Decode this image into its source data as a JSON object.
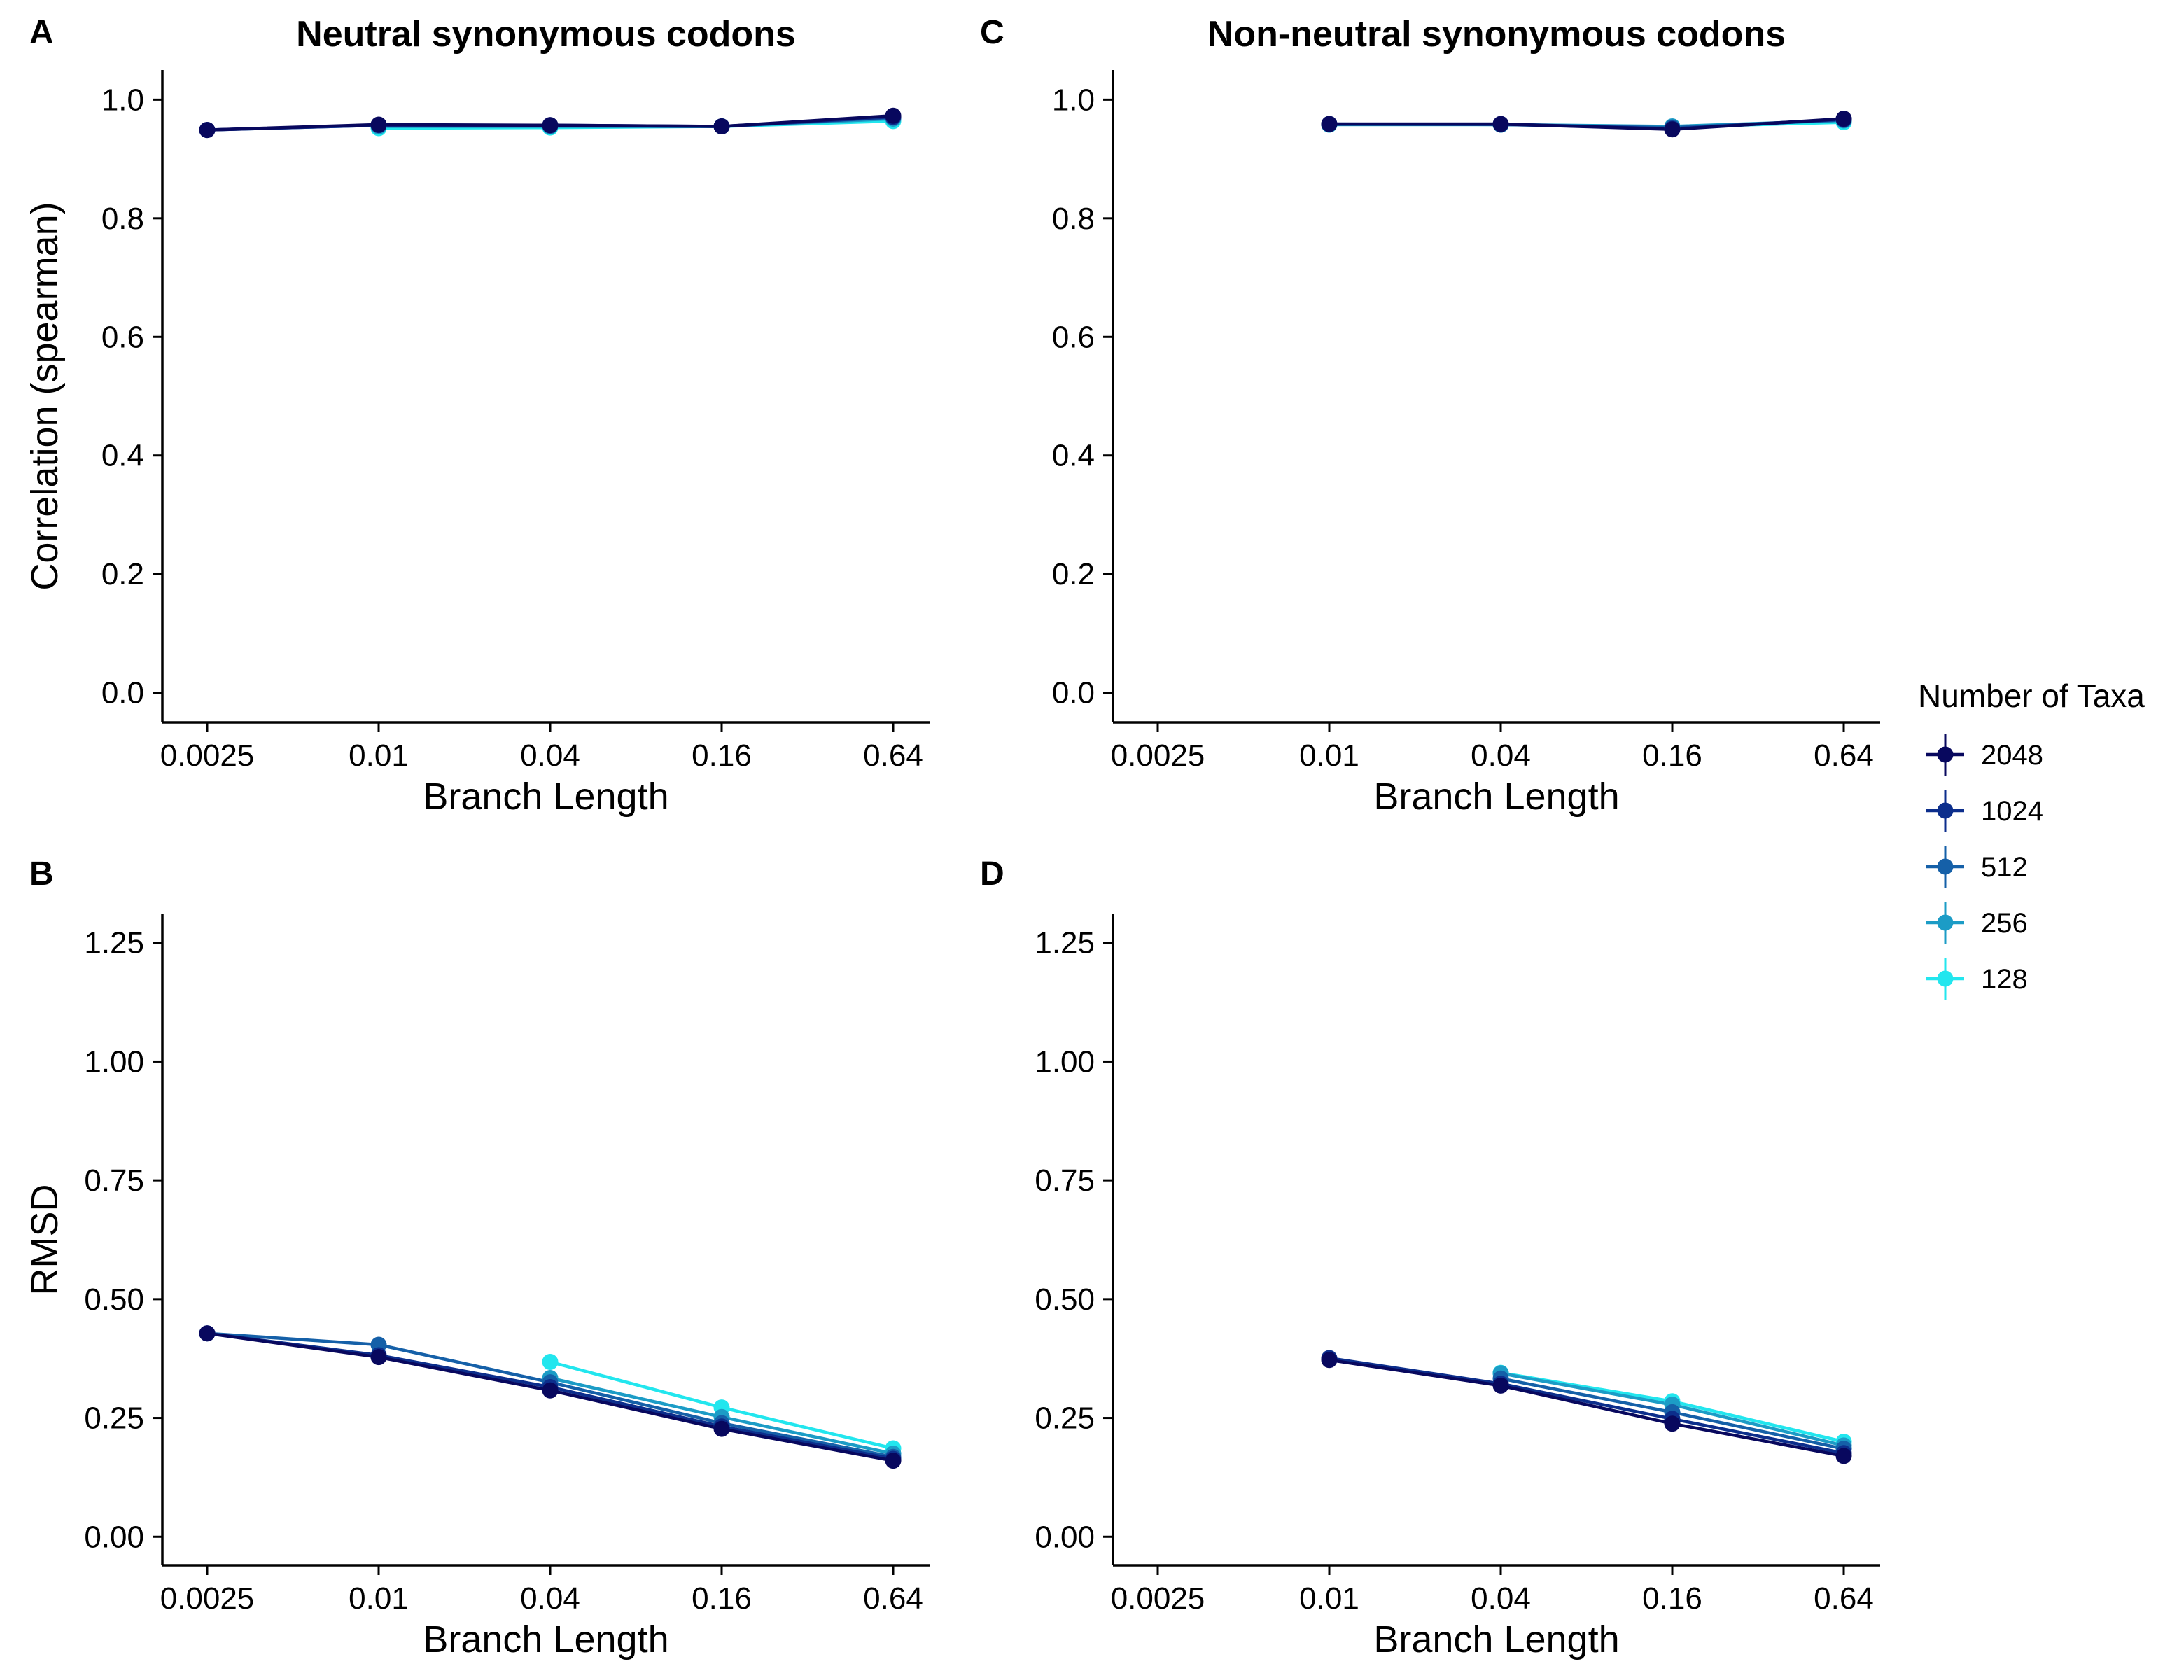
{
  "chart_data": [
    {
      "id": "A",
      "type": "line",
      "panel_label": "A",
      "title": "Neutral synonymous codons",
      "xlabel": "Branch Length",
      "ylabel": "Correlation (spearman)",
      "x_scale": "log",
      "x_ticks": [
        0.0025,
        0.01,
        0.04,
        0.16,
        0.64
      ],
      "x_tick_labels": [
        "0.0025",
        "0.01",
        "0.04",
        "0.16",
        "0.64"
      ],
      "ylim": [
        -0.05,
        1.05
      ],
      "y_ticks": [
        0.0,
        0.2,
        0.4,
        0.6,
        0.8,
        1.0
      ],
      "y_tick_labels": [
        "0.0",
        "0.2",
        "0.4",
        "0.6",
        "0.8",
        "1.0"
      ],
      "series": [
        {
          "name": "128",
          "x": [
            0.01,
            0.04,
            0.16,
            0.64
          ],
          "y": [
            0.952,
            0.953,
            0.955,
            0.964
          ]
        },
        {
          "name": "256",
          "x": [
            0.01,
            0.04,
            0.16,
            0.64
          ],
          "y": [
            0.955,
            0.955,
            0.955,
            0.968
          ]
        },
        {
          "name": "512",
          "x": [
            0.0025,
            0.01,
            0.04,
            0.16,
            0.64
          ],
          "y": [
            0.949,
            0.957,
            0.956,
            0.955,
            0.97
          ]
        },
        {
          "name": "1024",
          "x": [
            0.0025,
            0.01,
            0.04,
            0.16,
            0.64
          ],
          "y": [
            0.949,
            0.957,
            0.957,
            0.955,
            0.971
          ]
        },
        {
          "name": "2048",
          "x": [
            0.0025,
            0.01,
            0.04,
            0.16,
            0.64
          ],
          "y": [
            0.949,
            0.958,
            0.957,
            0.955,
            0.973
          ]
        }
      ]
    },
    {
      "id": "C",
      "type": "line",
      "panel_label": "C",
      "title": "Non-neutral synonymous codons",
      "xlabel": "Branch Length",
      "ylabel": "",
      "x_scale": "log",
      "x_ticks": [
        0.0025,
        0.01,
        0.04,
        0.16,
        0.64
      ],
      "x_tick_labels": [
        "0.0025",
        "0.01",
        "0.04",
        "0.16",
        "0.64"
      ],
      "ylim": [
        -0.05,
        1.05
      ],
      "y_ticks": [
        0.0,
        0.2,
        0.4,
        0.6,
        0.8,
        1.0
      ],
      "y_tick_labels": [
        "0.0",
        "0.2",
        "0.4",
        "0.6",
        "0.8",
        "1.0"
      ],
      "series": [
        {
          "name": "128",
          "x": [
            0.01,
            0.04,
            0.16,
            0.64
          ],
          "y": [
            0.958,
            0.958,
            0.954,
            0.962
          ]
        },
        {
          "name": "256",
          "x": [
            0.01,
            0.04,
            0.16,
            0.64
          ],
          "y": [
            0.958,
            0.958,
            0.955,
            0.965
          ]
        },
        {
          "name": "512",
          "x": [
            0.01,
            0.04,
            0.16,
            0.64
          ],
          "y": [
            0.959,
            0.958,
            0.953,
            0.966
          ]
        },
        {
          "name": "1024",
          "x": [
            0.01,
            0.04,
            0.16,
            0.64
          ],
          "y": [
            0.959,
            0.959,
            0.951,
            0.967
          ]
        },
        {
          "name": "2048",
          "x": [
            0.01,
            0.04,
            0.16,
            0.64
          ],
          "y": [
            0.959,
            0.959,
            0.95,
            0.968
          ]
        }
      ]
    },
    {
      "id": "B",
      "type": "line",
      "panel_label": "B",
      "title": "",
      "xlabel": "Branch Length",
      "ylabel": "RMSD",
      "x_scale": "log",
      "x_ticks": [
        0.0025,
        0.01,
        0.04,
        0.16,
        0.64
      ],
      "x_tick_labels": [
        "0.0025",
        "0.01",
        "0.04",
        "0.16",
        "0.64"
      ],
      "ylim": [
        -0.06,
        1.31
      ],
      "y_ticks": [
        0.0,
        0.25,
        0.5,
        0.75,
        1.0,
        1.25
      ],
      "y_tick_labels": [
        "0.00",
        "0.25",
        "0.50",
        "0.75",
        "1.00",
        "1.25"
      ],
      "series": [
        {
          "name": "128",
          "x": [
            0.04,
            0.16,
            0.64
          ],
          "y": [
            0.368,
            0.272,
            0.186
          ]
        },
        {
          "name": "256",
          "x": [
            0.04,
            0.16,
            0.64
          ],
          "y": [
            0.334,
            0.252,
            0.175
          ]
        },
        {
          "name": "512",
          "x": [
            0.0025,
            0.01,
            0.04,
            0.16,
            0.64
          ],
          "y": [
            0.428,
            0.404,
            0.325,
            0.239,
            0.168
          ]
        },
        {
          "name": "1024",
          "x": [
            0.0025,
            0.01,
            0.04,
            0.16,
            0.64
          ],
          "y": [
            0.428,
            0.382,
            0.315,
            0.232,
            0.164
          ]
        },
        {
          "name": "2048",
          "x": [
            0.0025,
            0.01,
            0.04,
            0.16,
            0.64
          ],
          "y": [
            0.428,
            0.378,
            0.308,
            0.227,
            0.16
          ]
        }
      ]
    },
    {
      "id": "D",
      "type": "line",
      "panel_label": "D",
      "title": "",
      "xlabel": "Branch Length",
      "ylabel": "",
      "x_scale": "log",
      "x_ticks": [
        0.0025,
        0.01,
        0.04,
        0.16,
        0.64
      ],
      "x_tick_labels": [
        "0.0025",
        "0.01",
        "0.04",
        "0.16",
        "0.64"
      ],
      "ylim": [
        -0.06,
        1.31
      ],
      "y_ticks": [
        0.0,
        0.25,
        0.5,
        0.75,
        1.0,
        1.25
      ],
      "y_tick_labels": [
        "0.00",
        "0.25",
        "0.50",
        "0.75",
        "1.00",
        "1.25"
      ],
      "series": [
        {
          "name": "128",
          "x": [
            0.04,
            0.16,
            0.64
          ],
          "y": [
            0.345,
            0.285,
            0.2
          ]
        },
        {
          "name": "256",
          "x": [
            0.04,
            0.16,
            0.64
          ],
          "y": [
            0.344,
            0.278,
            0.192
          ]
        },
        {
          "name": "512",
          "x": [
            0.04,
            0.16,
            0.64
          ],
          "y": [
            0.333,
            0.262,
            0.185
          ]
        },
        {
          "name": "1024",
          "x": [
            0.01,
            0.04,
            0.16,
            0.64
          ],
          "y": [
            0.376,
            0.322,
            0.248,
            0.176
          ]
        },
        {
          "name": "2048",
          "x": [
            0.01,
            0.04,
            0.16,
            0.64
          ],
          "y": [
            0.372,
            0.318,
            0.238,
            0.17
          ]
        }
      ]
    }
  ],
  "legend": {
    "title": "Number of Taxa",
    "position": "right",
    "items": [
      {
        "label": "2048",
        "color": "#08085e"
      },
      {
        "label": "1024",
        "color": "#0c2e8c"
      },
      {
        "label": "512",
        "color": "#1560a8"
      },
      {
        "label": "256",
        "color": "#1c9cc6"
      },
      {
        "label": "128",
        "color": "#22e6ee"
      }
    ]
  }
}
